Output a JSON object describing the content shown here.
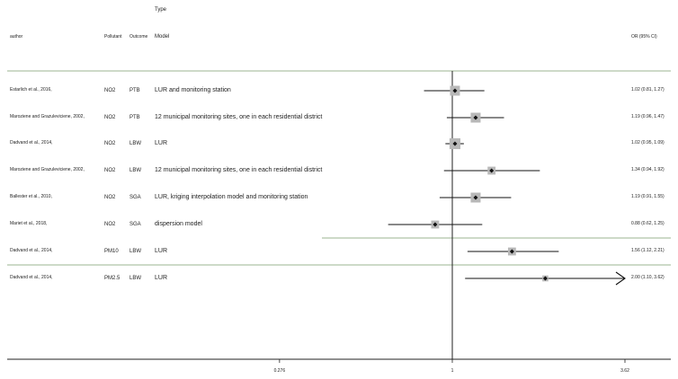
{
  "header": {
    "type_label": "Type",
    "col_author": "author",
    "col_pollutant": "Pollutant",
    "col_outcome": "Outcome",
    "col_model": "Model",
    "col_or": "OR (95% CI)"
  },
  "colors": {
    "divider_green": "#7a9b6c",
    "axis": "#222222",
    "box": "#b8b8b8",
    "point": "#111111"
  },
  "chart_data": {
    "type": "forest",
    "scale": "log",
    "null_value": 1,
    "xlim": [
      0.276,
      3.62
    ],
    "x_ticks": [
      "0.276",
      "1",
      "3.62"
    ],
    "tick_values": [
      0.276,
      1,
      3.62
    ],
    "rows": [
      {
        "author": "Estarlich et al., 2016,",
        "pollutant": "NO2",
        "outcome": "PTB",
        "model": "LUR and monitoring station",
        "or": 1.02,
        "lo": 0.81,
        "hi": 1.27,
        "label": "1.02 (0.81, 1.27)",
        "weight": 1.0
      },
      {
        "author": "Maroziene and Grazuleviciene, 2002,",
        "pollutant": "NO2",
        "outcome": "PTB",
        "model": "12 municipal monitoring sites, one in each residential district",
        "or": 1.19,
        "lo": 0.96,
        "hi": 1.47,
        "label": "1.19 (0.96, 1.47)",
        "weight": 1.0
      },
      {
        "author": "Dadvand et al., 2014,",
        "pollutant": "NO2",
        "outcome": "LBW",
        "model": "LUR",
        "or": 1.02,
        "lo": 0.95,
        "hi": 1.09,
        "label": "1.02 (0.95, 1.09)",
        "weight": 1.1
      },
      {
        "author": "Maroziene and Grazuleviciene, 2002,",
        "pollutant": "NO2",
        "outcome": "LBW",
        "model": "12 municipal monitoring sites, one in each residential district",
        "or": 1.34,
        "lo": 0.94,
        "hi": 1.92,
        "label": "1.34 (0.94, 1.92)",
        "weight": 0.8
      },
      {
        "author": "Ballester et al., 2010,",
        "pollutant": "NO2",
        "outcome": "SGA",
        "model": "LUR, kriging interpolation model and monitoring station",
        "or": 1.19,
        "lo": 0.91,
        "hi": 1.55,
        "label": "1.19 (0.91, 1.55)",
        "weight": 1.0
      },
      {
        "author": "Mariet et al., 2018,",
        "pollutant": "NO2",
        "outcome": "SGA",
        "model": "dispersion model",
        "or": 0.88,
        "lo": 0.62,
        "hi": 1.25,
        "label": "0.88 (0.62, 1.25)",
        "weight": 0.8
      },
      {
        "author": "Dadvand et al., 2014,",
        "pollutant": "PM10",
        "outcome": "LBW",
        "model": "LUR",
        "or": 1.56,
        "lo": 1.12,
        "hi": 2.21,
        "label": "1.56 (1.12, 2.21)",
        "weight": 0.8
      },
      {
        "author": "Dadvand et al., 2014,",
        "pollutant": "PM2.5",
        "outcome": "LBW",
        "model": "LUR",
        "or": 2.0,
        "lo": 1.1,
        "hi": 3.62,
        "label": "2.00 (1.10, 3.62)",
        "weight": 0.6,
        "arrow_right": true
      }
    ]
  }
}
